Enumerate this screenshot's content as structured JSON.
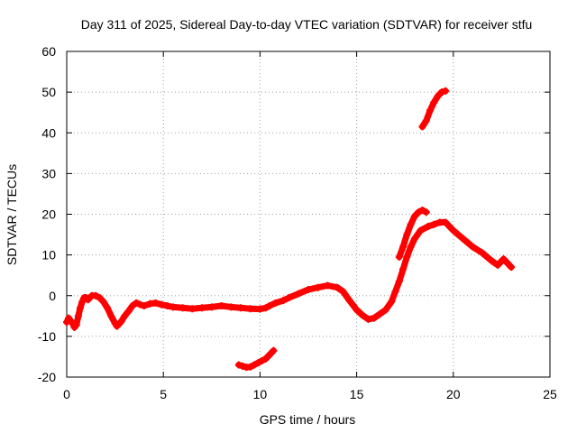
{
  "chart_data": {
    "type": "scatter",
    "title": "Day 311 of 2025, Sidereal Day-to-day VTEC variation (SDTVAR) for receiver stfu",
    "xlabel": "GPS time / hours",
    "ylabel": "SDTVAR / TECUs",
    "xlim": [
      0,
      25
    ],
    "ylim": [
      -20,
      60
    ],
    "xticks": [
      0,
      5,
      10,
      15,
      20,
      25
    ],
    "yticks": [
      -20,
      -10,
      0,
      10,
      20,
      30,
      40,
      50,
      60
    ],
    "grid": true,
    "marker": "plus",
    "series": [
      {
        "name": "SDTVAR",
        "color": "#ff0000",
        "segments": [
          [
            [
              0.0,
              -6.5
            ],
            [
              0.1,
              -5.5
            ],
            [
              0.3,
              -6.8
            ],
            [
              0.4,
              -7.8
            ],
            [
              0.5,
              -7.2
            ],
            [
              0.6,
              -5.0
            ],
            [
              0.7,
              -3.0
            ],
            [
              0.8,
              -1.5
            ],
            [
              0.9,
              -0.5
            ],
            [
              1.0,
              -0.5
            ],
            [
              1.1,
              -1.0
            ],
            [
              1.2,
              -0.5
            ],
            [
              1.3,
              0.0
            ],
            [
              1.5,
              0.0
            ],
            [
              1.7,
              -0.5
            ],
            [
              1.9,
              -1.5
            ],
            [
              2.1,
              -3.0
            ],
            [
              2.3,
              -5.0
            ],
            [
              2.5,
              -6.8
            ],
            [
              2.6,
              -7.5
            ],
            [
              2.8,
              -6.5
            ],
            [
              3.0,
              -5.0
            ],
            [
              3.2,
              -3.8
            ],
            [
              3.4,
              -2.5
            ],
            [
              3.6,
              -1.8
            ],
            [
              3.8,
              -2.2
            ],
            [
              4.0,
              -2.5
            ],
            [
              4.3,
              -2.0
            ],
            [
              4.6,
              -1.8
            ],
            [
              4.9,
              -2.2
            ],
            [
              5.2,
              -2.5
            ],
            [
              5.5,
              -2.8
            ],
            [
              6.0,
              -3.0
            ],
            [
              6.5,
              -3.2
            ],
            [
              7.0,
              -3.0
            ],
            [
              7.5,
              -2.8
            ],
            [
              8.0,
              -2.5
            ],
            [
              8.5,
              -2.8
            ],
            [
              9.0,
              -3.0
            ],
            [
              9.5,
              -3.2
            ],
            [
              10.0,
              -3.3
            ],
            [
              10.3,
              -3.0
            ],
            [
              10.5,
              -2.5
            ],
            [
              10.8,
              -1.8
            ],
            [
              11.2,
              -1.2
            ],
            [
              11.5,
              -0.5
            ],
            [
              12.0,
              0.5
            ],
            [
              12.5,
              1.5
            ],
            [
              13.0,
              2.0
            ],
            [
              13.5,
              2.5
            ],
            [
              14.0,
              2.0
            ],
            [
              14.3,
              1.0
            ],
            [
              14.6,
              -1.0
            ],
            [
              15.0,
              -3.5
            ],
            [
              15.3,
              -4.8
            ],
            [
              15.6,
              -5.8
            ],
            [
              15.9,
              -5.5
            ],
            [
              16.2,
              -4.5
            ],
            [
              16.5,
              -3.5
            ],
            [
              16.8,
              -1.5
            ],
            [
              17.0,
              1.0
            ],
            [
              17.2,
              3.5
            ],
            [
              17.4,
              6.5
            ],
            [
              17.6,
              9.5
            ],
            [
              17.8,
              12.0
            ],
            [
              18.0,
              14.0
            ],
            [
              18.3,
              16.0
            ],
            [
              18.7,
              17.0
            ],
            [
              19.0,
              17.5
            ],
            [
              19.3,
              18.0
            ],
            [
              19.6,
              18.0
            ],
            [
              20.0,
              16.0
            ],
            [
              20.5,
              14.0
            ],
            [
              21.0,
              12.0
            ],
            [
              21.5,
              10.5
            ],
            [
              22.0,
              8.5
            ],
            [
              22.3,
              7.5
            ],
            [
              22.6,
              9.0
            ],
            [
              22.8,
              8.0
            ],
            [
              23.0,
              7.0
            ]
          ],
          [
            [
              17.2,
              9.5
            ],
            [
              17.4,
              12.0
            ],
            [
              17.6,
              15.0
            ],
            [
              17.8,
              17.5
            ],
            [
              18.0,
              19.5
            ],
            [
              18.2,
              20.5
            ],
            [
              18.4,
              21.0
            ],
            [
              18.6,
              20.5
            ]
          ],
          [
            [
              18.4,
              41.5
            ],
            [
              18.6,
              43.0
            ],
            [
              18.8,
              45.5
            ],
            [
              19.0,
              47.5
            ],
            [
              19.2,
              49.0
            ],
            [
              19.4,
              50.0
            ],
            [
              19.6,
              50.3
            ]
          ],
          [
            [
              8.9,
              -17.0
            ],
            [
              9.1,
              -17.3
            ],
            [
              9.3,
              -17.6
            ],
            [
              9.5,
              -17.5
            ],
            [
              9.7,
              -17.0
            ],
            [
              9.9,
              -16.5
            ],
            [
              10.1,
              -16.0
            ],
            [
              10.3,
              -15.5
            ],
            [
              10.5,
              -14.5
            ],
            [
              10.7,
              -13.5
            ]
          ]
        ]
      }
    ]
  }
}
